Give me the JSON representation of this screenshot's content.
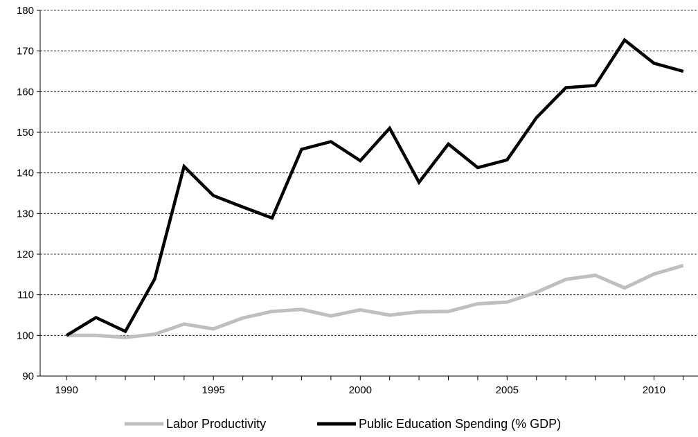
{
  "chart_data": {
    "type": "line",
    "title": "",
    "xlabel": "",
    "ylabel": "",
    "xlim": [
      1990,
      2011
    ],
    "ylim": [
      90,
      180
    ],
    "y_ticks": [
      90,
      100,
      110,
      120,
      130,
      140,
      150,
      160,
      170,
      180
    ],
    "x_tick_labels": [
      1990,
      1995,
      2000,
      2005,
      2010
    ],
    "y_tick_text": [
      "90",
      "100",
      "110",
      "120",
      "130",
      "140",
      "150",
      "160",
      "170",
      "180"
    ],
    "x_tick_text": [
      "1990",
      "1995",
      "2000",
      "2005",
      "2010"
    ],
    "grid": "horizontal dashed",
    "legend_position": "bottom",
    "x": [
      1990,
      1991,
      1992,
      1993,
      1994,
      1995,
      1996,
      1997,
      1998,
      1999,
      2000,
      2001,
      2002,
      2003,
      2004,
      2005,
      2006,
      2007,
      2008,
      2009,
      2010,
      2011
    ],
    "series": [
      {
        "name": "Labor Productivity",
        "color": "#bfbfbf",
        "values": [
          100,
          100,
          99.5,
          100.3,
          102.8,
          101.6,
          104.3,
          105.9,
          106.4,
          104.8,
          106.3,
          105,
          105.8,
          105.9,
          107.8,
          108.2,
          110.6,
          113.8,
          114.8,
          111.7,
          115.1,
          117.2
        ]
      },
      {
        "name": "Public Education Spending (% GDP)",
        "color": "#000000",
        "values": [
          100,
          104.4,
          101,
          113.9,
          141.6,
          134.4,
          131.6,
          128.9,
          145.8,
          147.7,
          143,
          151,
          137.7,
          147.1,
          141.3,
          143.2,
          153.6,
          161,
          161.5,
          172.7,
          167,
          165
        ]
      }
    ]
  }
}
